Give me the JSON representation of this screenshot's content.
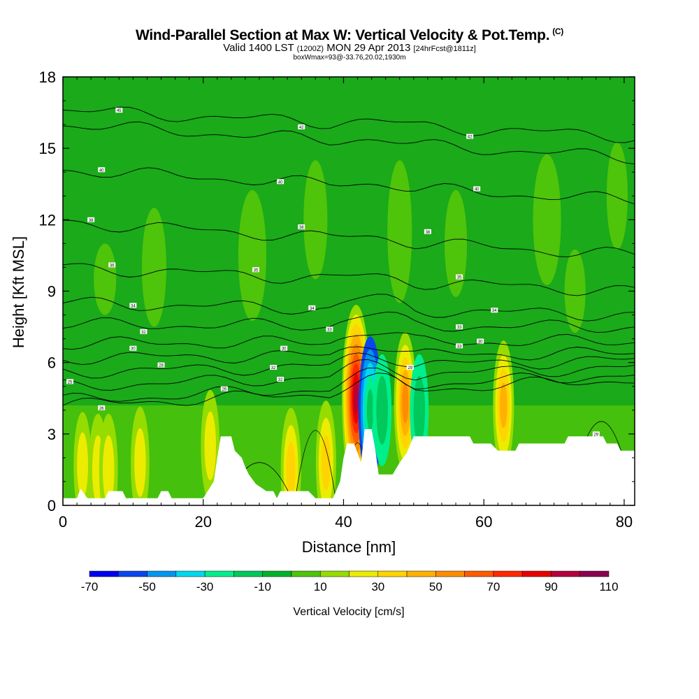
{
  "header": {
    "title": "Wind-Parallel Section at Max W: Vertical Velocity & Pot.Temp.",
    "copyright": "(C)",
    "valid_prefix": "Valid 1400 LST",
    "valid_utc": "(1200Z)",
    "valid_date": "MON 29 Apr 2013",
    "forecast": "[24hrFcst@1811z]",
    "subtitle3": "boxWmax=93@-33.76,20.02,1930m"
  },
  "chart_data": {
    "type": "heatmap",
    "xlabel": "Distance [nm]",
    "ylabel": "Height [Kft MSL]",
    "xlim": [
      0,
      81.5
    ],
    "ylim": [
      0,
      18
    ],
    "x_ticks": [
      0,
      20,
      40,
      60,
      80
    ],
    "y_ticks": [
      0,
      3,
      6,
      9,
      12,
      15,
      18
    ],
    "colorbar": {
      "label": "Vertical Velocity [cm/s]",
      "levels": [
        -70,
        -60,
        -50,
        -40,
        -30,
        -20,
        -10,
        0,
        10,
        20,
        30,
        40,
        50,
        60,
        70,
        80,
        90,
        100,
        110
      ],
      "tick_labels": [
        -70,
        -50,
        -30,
        -10,
        10,
        30,
        50,
        70,
        90,
        110
      ],
      "colors": [
        "#0000ee",
        "#0a46ee",
        "#0096ee",
        "#00d8ee",
        "#00ee8c",
        "#00c85a",
        "#00b22a",
        "#4ec40a",
        "#96dc00",
        "#ecec00",
        "#ffd400",
        "#ffb000",
        "#ff8c00",
        "#ff5a00",
        "#ff2800",
        "#e60000",
        "#b4003c",
        "#8c0050"
      ]
    },
    "w_background": "#1aaa1a",
    "updraft_cells": [
      {
        "x": 2.8,
        "z": 1.7,
        "w": 25
      },
      {
        "x": 5.0,
        "z": 1.5,
        "w": 30
      },
      {
        "x": 6.5,
        "z": 1.5,
        "w": 30
      },
      {
        "x": 11.0,
        "z": 1.8,
        "w": 30
      },
      {
        "x": 21.0,
        "z": 2.5,
        "w": 30
      },
      {
        "x": 32.5,
        "z": 1.5,
        "w": 40
      },
      {
        "x": 37.5,
        "z": 1.8,
        "w": 40
      },
      {
        "x": 41.8,
        "z": 4.5,
        "w": 93
      },
      {
        "x": 48.8,
        "z": 4.3,
        "w": 55
      },
      {
        "x": 62.8,
        "z": 4.2,
        "w": 45
      }
    ],
    "downdraft_cells": [
      {
        "x": 43.8,
        "z": 4.0,
        "w": -60
      },
      {
        "x": 45.5,
        "z": 4.0,
        "w": -30
      },
      {
        "x": 50.8,
        "z": 4.0,
        "w": -30
      }
    ],
    "terrain": [
      [
        0,
        0.3
      ],
      [
        2,
        0.3
      ],
      [
        2.5,
        0.7
      ],
      [
        3.5,
        0.3
      ],
      [
        6,
        0.3
      ],
      [
        6.5,
        0.6
      ],
      [
        8.5,
        0.6
      ],
      [
        9,
        0.3
      ],
      [
        13.5,
        0.3
      ],
      [
        14,
        0.6
      ],
      [
        15,
        0.6
      ],
      [
        15.5,
        0.3
      ],
      [
        20,
        0.3
      ],
      [
        21.5,
        1.0
      ],
      [
        22,
        2.0
      ],
      [
        22.5,
        2.9
      ],
      [
        24,
        2.9
      ],
      [
        24.5,
        2.3
      ],
      [
        25.5,
        2.0
      ],
      [
        26,
        1.6
      ],
      [
        26.5,
        1.3
      ],
      [
        27.5,
        0.9
      ],
      [
        29,
        0.6
      ],
      [
        30,
        0.6
      ],
      [
        30.5,
        0.3
      ],
      [
        31,
        0.6
      ],
      [
        35,
        0.6
      ],
      [
        36,
        0.3
      ],
      [
        38.5,
        0.3
      ],
      [
        39.5,
        1.0
      ],
      [
        40,
        2.0
      ],
      [
        40.5,
        2.6
      ],
      [
        41.5,
        2.6
      ],
      [
        42.5,
        1.8
      ],
      [
        43,
        3.2
      ],
      [
        44,
        3.2
      ],
      [
        44.5,
        2.4
      ],
      [
        45,
        1.3
      ],
      [
        47,
        1.3
      ],
      [
        48,
        1.8
      ],
      [
        49,
        2.2
      ],
      [
        50,
        2.9
      ],
      [
        58,
        2.9
      ],
      [
        58.5,
        2.6
      ],
      [
        61,
        2.6
      ],
      [
        62,
        2.3
      ],
      [
        64.5,
        2.3
      ],
      [
        65,
        2.6
      ],
      [
        71.5,
        2.6
      ],
      [
        72,
        2.9
      ],
      [
        77,
        2.9
      ],
      [
        77.5,
        2.6
      ],
      [
        79,
        2.6
      ],
      [
        79.5,
        2.3
      ],
      [
        81.5,
        2.3
      ]
    ],
    "theta_contours": [
      {
        "level": 25,
        "z_left": 4.2,
        "z_right": 5.3,
        "label_x": 1
      },
      {
        "level": 26,
        "z_left": 4.4,
        "z_right": 5.5,
        "label_x": 5.5
      },
      {
        "level": 28,
        "z_left": 5.0,
        "z_right": 5.8,
        "label_x": 14
      },
      {
        "level": 30,
        "z_left": 5.6,
        "z_right": 6.1,
        "label_x": 10
      },
      {
        "level": 32,
        "z_left": 6.2,
        "z_right": 6.4,
        "label_x": 11.5
      },
      {
        "level": 33,
        "z_left": 6.8,
        "z_right": 6.9,
        "label_x": 38
      },
      {
        "level": 34,
        "z_left": 7.6,
        "z_right": 7.5,
        "label_x": 10
      },
      {
        "level": 35,
        "z_left": 8.5,
        "z_right": 8.0,
        "label_x": 35
      },
      {
        "level": 36,
        "z_left": 10.0,
        "z_right": 9.0,
        "label_x": 7
      },
      {
        "level": 38,
        "z_left": 11.9,
        "z_right": 10.5,
        "label_x": 4
      },
      {
        "level": 40,
        "z_left": 14.1,
        "z_right": 12.8,
        "label_x": 6
      },
      {
        "level": 42,
        "z_left": 16.0,
        "z_right": 14.6,
        "label_x": 34
      },
      {
        "level": 45,
        "z_left": 16.6,
        "z_right": 15.5,
        "label_x": 8
      }
    ],
    "contour_labels": [
      {
        "text": "25",
        "x": 1,
        "z": 5.2
      },
      {
        "text": "26",
        "x": 5.5,
        "z": 4.1
      },
      {
        "text": "26",
        "x": 23,
        "z": 4.9
      },
      {
        "text": "28",
        "x": 14,
        "z": 5.9
      },
      {
        "text": "30",
        "x": 10,
        "z": 6.6
      },
      {
        "text": "30",
        "x": 31.5,
        "z": 6.6
      },
      {
        "text": "30",
        "x": 59.5,
        "z": 6.9
      },
      {
        "text": "32",
        "x": 11.5,
        "z": 7.3
      },
      {
        "text": "32",
        "x": 30,
        "z": 5.8
      },
      {
        "text": "32",
        "x": 31,
        "z": 5.3
      },
      {
        "text": "33",
        "x": 38,
        "z": 7.4
      },
      {
        "text": "33",
        "x": 56.5,
        "z": 7.5
      },
      {
        "text": "33",
        "x": 56.5,
        "z": 6.7
      },
      {
        "text": "34",
        "x": 10,
        "z": 8.4
      },
      {
        "text": "34",
        "x": 35.5,
        "z": 8.3
      },
      {
        "text": "34",
        "x": 61.5,
        "z": 8.2
      },
      {
        "text": "35",
        "x": 27.5,
        "z": 9.9
      },
      {
        "text": "35",
        "x": 56.5,
        "z": 9.6
      },
      {
        "text": "36",
        "x": 7,
        "z": 10.1
      },
      {
        "text": "38",
        "x": 4,
        "z": 12.0
      },
      {
        "text": "38",
        "x": 34,
        "z": 11.7
      },
      {
        "text": "38",
        "x": 52,
        "z": 11.5
      },
      {
        "text": "40",
        "x": 5.5,
        "z": 14.1
      },
      {
        "text": "40",
        "x": 31,
        "z": 13.6
      },
      {
        "text": "40",
        "x": 59,
        "z": 13.3
      },
      {
        "text": "42",
        "x": 34,
        "z": 15.9
      },
      {
        "text": "42",
        "x": 58,
        "z": 15.5
      },
      {
        "text": "45",
        "x": 8,
        "z": 16.6
      },
      {
        "text": "29",
        "x": 49.5,
        "z": 5.8
      },
      {
        "text": "29",
        "x": 76,
        "z": 3.0
      }
    ]
  }
}
